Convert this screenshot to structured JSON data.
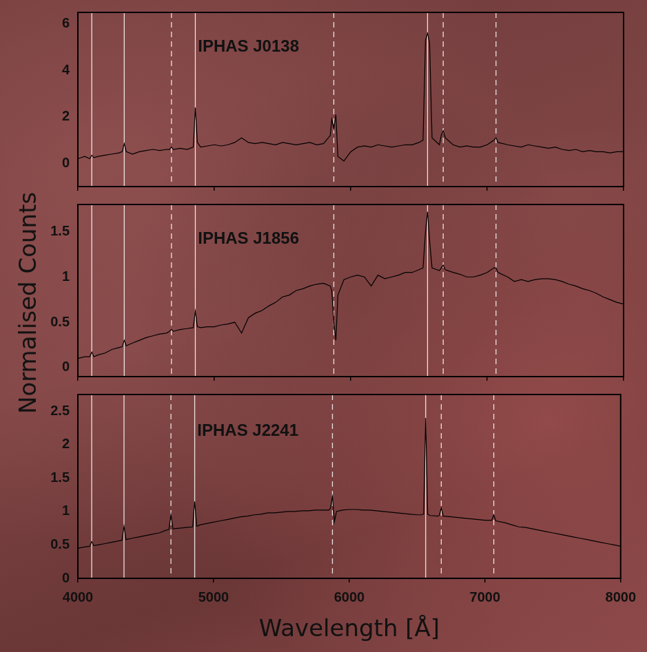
{
  "chart_data": [
    {
      "type": "line",
      "title": "IPHAS J0138",
      "color": "#000000",
      "xlim": [
        4000,
        8000
      ],
      "xticks": [
        4000,
        5000,
        6000,
        7000,
        8000
      ],
      "ylim": [
        -1,
        6.5
      ],
      "yticks": [
        0,
        2,
        4,
        6
      ],
      "grid": false,
      "tick_labels": "y",
      "reference_lines": [
        {
          "x": 4102,
          "line_style": "solid"
        },
        {
          "x": 4340,
          "line_style": "solid"
        },
        {
          "x": 4861,
          "line_style": "solid"
        },
        {
          "x": 6563,
          "line_style": "solid"
        },
        {
          "x": 4686,
          "line_style": "dashed"
        },
        {
          "x": 5876,
          "line_style": "dashed"
        },
        {
          "x": 6678,
          "line_style": "dashed"
        },
        {
          "x": 7065,
          "line_style": "dashed"
        }
      ],
      "x": [
        4000,
        4050,
        4087,
        4102,
        4117,
        4150,
        4200,
        4250,
        4300,
        4325,
        4340,
        4355,
        4400,
        4450,
        4500,
        4550,
        4600,
        4650,
        4671,
        4686,
        4701,
        4750,
        4800,
        4846,
        4861,
        4876,
        4900,
        4950,
        5000,
        5050,
        5100,
        5150,
        5200,
        5250,
        5300,
        5350,
        5400,
        5450,
        5500,
        5550,
        5600,
        5650,
        5700,
        5750,
        5800,
        5850,
        5861,
        5876,
        5891,
        5906,
        5950,
        6000,
        6050,
        6100,
        6150,
        6200,
        6250,
        6300,
        6350,
        6400,
        6450,
        6500,
        6530,
        6548,
        6563,
        6578,
        6596,
        6650,
        6663,
        6678,
        6693,
        6750,
        6800,
        6850,
        6900,
        6950,
        7000,
        7050,
        7065,
        7080,
        7150,
        7200,
        7250,
        7300,
        7350,
        7400,
        7450,
        7500,
        7550,
        7600,
        7650,
        7700,
        7750,
        7800,
        7850,
        7900,
        7950,
        8000
      ],
      "values": [
        0.2,
        0.3,
        0.2,
        0.35,
        0.25,
        0.3,
        0.35,
        0.4,
        0.45,
        0.5,
        0.85,
        0.5,
        0.4,
        0.5,
        0.55,
        0.6,
        0.55,
        0.6,
        0.6,
        0.7,
        0.6,
        0.65,
        0.6,
        0.7,
        2.4,
        0.9,
        0.7,
        0.75,
        0.8,
        0.75,
        0.8,
        0.9,
        1.1,
        0.9,
        0.85,
        0.9,
        0.85,
        0.8,
        0.9,
        0.85,
        0.8,
        0.85,
        0.9,
        0.8,
        0.85,
        1.2,
        1.9,
        1.5,
        2.1,
        0.3,
        0.1,
        0.5,
        0.7,
        0.75,
        0.7,
        0.8,
        0.75,
        0.7,
        0.75,
        0.8,
        0.8,
        0.9,
        1.0,
        5.3,
        5.6,
        5.2,
        1.1,
        0.8,
        1.2,
        1.4,
        1.1,
        0.8,
        0.7,
        0.75,
        0.7,
        0.7,
        0.8,
        1.0,
        1.1,
        0.9,
        0.8,
        0.75,
        0.7,
        0.8,
        0.75,
        0.7,
        0.65,
        0.7,
        0.6,
        0.55,
        0.6,
        0.5,
        0.55,
        0.5,
        0.5,
        0.45,
        0.5,
        0.5
      ]
    },
    {
      "type": "line",
      "title": "IPHAS J1856",
      "color": "#000000",
      "ylabel": "Normalised Counts",
      "xlim": [
        4000,
        8000
      ],
      "xticks": [
        4000,
        5000,
        6000,
        7000,
        8000
      ],
      "ylim": [
        -0.1,
        1.8
      ],
      "yticks": [
        0,
        0.5,
        1,
        1.5
      ],
      "grid": false,
      "tick_labels": "y",
      "reference_lines": [
        {
          "x": 4102,
          "line_style": "solid"
        },
        {
          "x": 4340,
          "line_style": "solid"
        },
        {
          "x": 4861,
          "line_style": "solid"
        },
        {
          "x": 6563,
          "line_style": "solid"
        },
        {
          "x": 4686,
          "line_style": "dashed"
        },
        {
          "x": 5876,
          "line_style": "dashed"
        },
        {
          "x": 6678,
          "line_style": "dashed"
        },
        {
          "x": 7065,
          "line_style": "dashed"
        }
      ],
      "x": [
        4000,
        4050,
        4087,
        4102,
        4117,
        4150,
        4200,
        4250,
        4300,
        4325,
        4340,
        4355,
        4400,
        4450,
        4500,
        4550,
        4600,
        4650,
        4671,
        4686,
        4701,
        4750,
        4800,
        4846,
        4861,
        4876,
        4900,
        4950,
        5000,
        5050,
        5100,
        5150,
        5200,
        5250,
        5300,
        5350,
        5400,
        5450,
        5500,
        5550,
        5600,
        5650,
        5700,
        5750,
        5800,
        5850,
        5861,
        5876,
        5891,
        5906,
        5950,
        6000,
        6050,
        6100,
        6150,
        6200,
        6250,
        6300,
        6350,
        6400,
        6450,
        6500,
        6530,
        6548,
        6563,
        6578,
        6596,
        6650,
        6663,
        6678,
        6693,
        6750,
        6800,
        6850,
        6900,
        6950,
        7000,
        7050,
        7065,
        7080,
        7150,
        7200,
        7250,
        7300,
        7350,
        7400,
        7450,
        7500,
        7550,
        7600,
        7650,
        7700,
        7750,
        7800,
        7850,
        7900,
        7950,
        8000
      ],
      "values": [
        0.1,
        0.12,
        0.12,
        0.17,
        0.12,
        0.14,
        0.16,
        0.2,
        0.22,
        0.23,
        0.3,
        0.24,
        0.27,
        0.3,
        0.33,
        0.35,
        0.37,
        0.38,
        0.4,
        0.42,
        0.4,
        0.42,
        0.43,
        0.44,
        0.62,
        0.45,
        0.44,
        0.45,
        0.45,
        0.47,
        0.48,
        0.5,
        0.38,
        0.55,
        0.6,
        0.63,
        0.68,
        0.72,
        0.78,
        0.8,
        0.85,
        0.87,
        0.9,
        0.92,
        0.93,
        0.9,
        0.85,
        0.5,
        0.3,
        0.8,
        0.97,
        1.0,
        1.02,
        1.0,
        0.9,
        1.02,
        0.98,
        1.0,
        1.02,
        1.05,
        1.05,
        1.08,
        1.1,
        1.5,
        1.72,
        1.4,
        1.1,
        1.07,
        1.1,
        1.13,
        1.08,
        1.05,
        1.03,
        1.0,
        1.0,
        1.02,
        1.05,
        1.1,
        1.1,
        1.05,
        1.0,
        0.95,
        0.97,
        0.95,
        0.97,
        0.98,
        0.98,
        0.97,
        0.95,
        0.92,
        0.9,
        0.87,
        0.85,
        0.82,
        0.78,
        0.75,
        0.72,
        0.7
      ]
    },
    {
      "type": "line",
      "title": "IPHAS J2241",
      "color": "#000000",
      "xlabel": "Wavelength [Å]",
      "xlim": [
        4000,
        8000
      ],
      "xticks": [
        4000,
        5000,
        6000,
        7000,
        8000
      ],
      "ylim": [
        0,
        2.75
      ],
      "yticks": [
        0,
        0.5,
        1,
        1.5,
        2,
        2.5
      ],
      "grid": false,
      "tick_labels": true,
      "reference_lines": [
        {
          "x": 4102,
          "line_style": "solid"
        },
        {
          "x": 4340,
          "line_style": "solid"
        },
        {
          "x": 4861,
          "line_style": "solid"
        },
        {
          "x": 6563,
          "line_style": "solid"
        },
        {
          "x": 4686,
          "line_style": "dashed"
        },
        {
          "x": 5876,
          "line_style": "dashed"
        },
        {
          "x": 6678,
          "line_style": "dashed"
        },
        {
          "x": 7065,
          "line_style": "dashed"
        }
      ],
      "x": [
        4000,
        4050,
        4087,
        4102,
        4117,
        4150,
        4200,
        4250,
        4300,
        4325,
        4340,
        4355,
        4400,
        4450,
        4500,
        4550,
        4600,
        4650,
        4671,
        4686,
        4701,
        4750,
        4800,
        4846,
        4861,
        4876,
        4900,
        4950,
        5000,
        5050,
        5100,
        5150,
        5200,
        5250,
        5300,
        5350,
        5400,
        5450,
        5500,
        5550,
        5600,
        5650,
        5700,
        5750,
        5800,
        5850,
        5861,
        5876,
        5891,
        5906,
        5950,
        6000,
        6050,
        6100,
        6150,
        6200,
        6250,
        6300,
        6350,
        6400,
        6450,
        6500,
        6530,
        6548,
        6563,
        6578,
        6596,
        6650,
        6663,
        6678,
        6693,
        6750,
        6800,
        6850,
        6900,
        6950,
        7000,
        7050,
        7065,
        7080,
        7150,
        7200,
        7250,
        7300,
        7350,
        7400,
        7450,
        7500,
        7550,
        7600,
        7650,
        7700,
        7750,
        7800,
        7850,
        7900,
        7950,
        8000
      ],
      "values": [
        0.45,
        0.47,
        0.48,
        0.55,
        0.49,
        0.5,
        0.52,
        0.54,
        0.56,
        0.57,
        0.78,
        0.58,
        0.6,
        0.62,
        0.64,
        0.66,
        0.68,
        0.72,
        0.73,
        0.95,
        0.74,
        0.75,
        0.76,
        0.77,
        1.15,
        0.78,
        0.8,
        0.82,
        0.84,
        0.86,
        0.88,
        0.9,
        0.92,
        0.93,
        0.95,
        0.96,
        0.98,
        0.98,
        0.99,
        1.0,
        1.0,
        1.01,
        1.01,
        1.02,
        1.02,
        1.02,
        1.05,
        1.22,
        0.85,
        1.0,
        1.02,
        1.03,
        1.03,
        1.02,
        1.02,
        1.01,
        1.0,
        0.99,
        0.98,
        0.97,
        0.96,
        0.95,
        0.95,
        0.96,
        2.4,
        0.96,
        0.94,
        0.93,
        0.94,
        1.05,
        0.93,
        0.92,
        0.91,
        0.9,
        0.89,
        0.88,
        0.87,
        0.87,
        0.95,
        0.86,
        0.83,
        0.8,
        0.77,
        0.76,
        0.74,
        0.72,
        0.7,
        0.68,
        0.66,
        0.64,
        0.62,
        0.6,
        0.58,
        0.56,
        0.54,
        0.52,
        0.5,
        0.48
      ]
    }
  ]
}
